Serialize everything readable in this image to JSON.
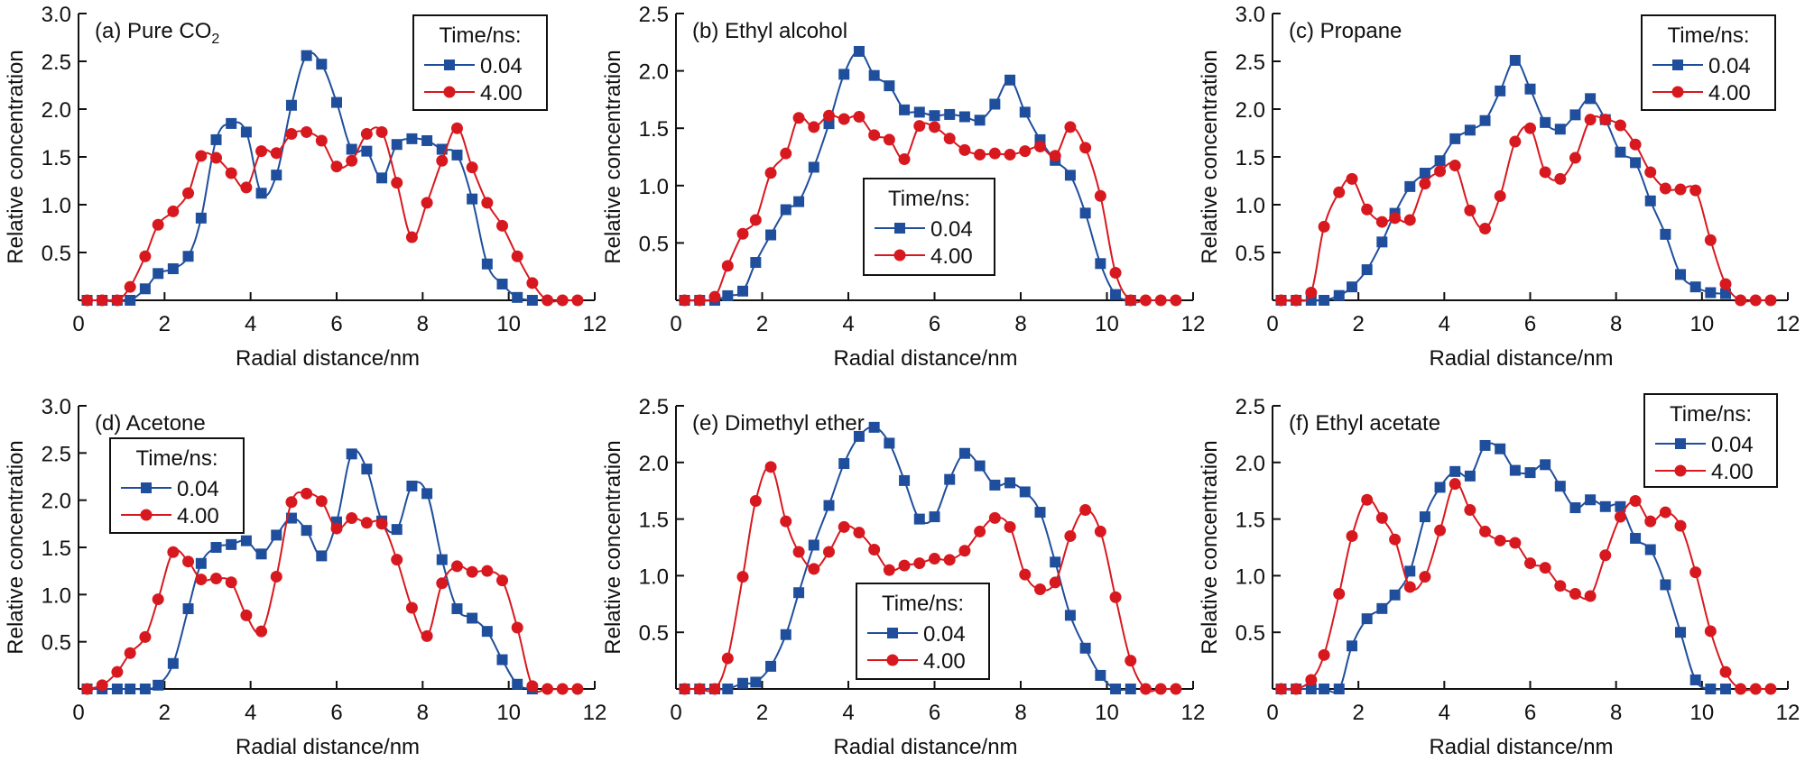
{
  "colors": {
    "series_a": "#1f4e9c",
    "series_b": "#d7191f",
    "axis": "#111111"
  },
  "chart_data": [
    {
      "type": "line",
      "panel": "a",
      "title": "(a) Pure CO",
      "title_subscript": "2",
      "xlabel": "Radial distance/nm",
      "ylabel": "Relative concentration",
      "xlim": [
        0,
        12
      ],
      "ylim": [
        0,
        3.0
      ],
      "xticks": [
        "0",
        "2",
        "4",
        "6",
        "8",
        "10",
        "12"
      ],
      "yticks": [
        "0.5",
        "1.0",
        "1.5",
        "2.0",
        "2.5",
        "3.0"
      ],
      "legend": {
        "title": "Time/ns:",
        "placement": "top-right"
      },
      "series": [
        {
          "name": "0.04",
          "marker": "square",
          "x": [
            0.2,
            0.55,
            0.9,
            1.2,
            1.55,
            1.85,
            2.2,
            2.55,
            2.85,
            3.2,
            3.55,
            3.9,
            4.25,
            4.6,
            4.95,
            5.3,
            5.65,
            6.0,
            6.35,
            6.7,
            7.05,
            7.4,
            7.75,
            8.1,
            8.45,
            8.8,
            9.15,
            9.5,
            9.85,
            10.2,
            10.55
          ],
          "y": [
            0,
            0,
            0,
            0,
            0.12,
            0.28,
            0.33,
            0.46,
            0.86,
            1.68,
            1.85,
            1.76,
            1.12,
            1.31,
            2.04,
            2.56,
            2.47,
            2.07,
            1.58,
            1.56,
            1.28,
            1.63,
            1.69,
            1.67,
            1.58,
            1.52,
            1.06,
            0.38,
            0.17,
            0.03,
            0
          ]
        },
        {
          "name": "4.00",
          "marker": "circle",
          "x": [
            0.2,
            0.55,
            0.9,
            1.2,
            1.55,
            1.85,
            2.2,
            2.55,
            2.85,
            3.2,
            3.55,
            3.9,
            4.25,
            4.6,
            4.95,
            5.3,
            5.65,
            6.0,
            6.35,
            6.7,
            7.05,
            7.4,
            7.75,
            8.1,
            8.45,
            8.8,
            9.15,
            9.5,
            9.85,
            10.2,
            10.55,
            10.9,
            11.25,
            11.6
          ],
          "y": [
            0,
            0,
            0,
            0.14,
            0.46,
            0.79,
            0.93,
            1.12,
            1.51,
            1.49,
            1.33,
            1.18,
            1.56,
            1.54,
            1.74,
            1.76,
            1.67,
            1.4,
            1.46,
            1.74,
            1.76,
            1.23,
            0.66,
            1.02,
            1.46,
            1.8,
            1.39,
            1.02,
            0.78,
            0.46,
            0.18,
            0,
            0,
            0
          ]
        }
      ]
    },
    {
      "type": "line",
      "panel": "b",
      "title": "(b) Ethyl alcohol",
      "xlabel": "Radial distance/nm",
      "ylabel": "Relative concentration",
      "xlim": [
        0,
        12
      ],
      "ylim": [
        0,
        2.5
      ],
      "xticks": [
        "0",
        "2",
        "4",
        "6",
        "8",
        "10",
        "12"
      ],
      "yticks": [
        "0.5",
        "1.0",
        "1.5",
        "2.0",
        "2.5"
      ],
      "legend": {
        "title": "Time/ns:",
        "placement": "center"
      },
      "series": [
        {
          "name": "0.04",
          "marker": "square",
          "x": [
            0.2,
            0.55,
            0.9,
            1.2,
            1.55,
            1.85,
            2.2,
            2.55,
            2.85,
            3.2,
            3.55,
            3.9,
            4.25,
            4.6,
            4.95,
            5.3,
            5.65,
            6.0,
            6.35,
            6.7,
            7.05,
            7.4,
            7.75,
            8.1,
            8.45,
            8.8,
            9.15,
            9.5,
            9.85,
            10.2,
            10.55
          ],
          "y": [
            0,
            0,
            0,
            0.04,
            0.08,
            0.33,
            0.57,
            0.79,
            0.86,
            1.16,
            1.54,
            1.97,
            2.17,
            1.96,
            1.87,
            1.66,
            1.64,
            1.61,
            1.62,
            1.6,
            1.57,
            1.71,
            1.92,
            1.64,
            1.4,
            1.22,
            1.09,
            0.76,
            0.32,
            0.05,
            0
          ]
        },
        {
          "name": "4.00",
          "marker": "circle",
          "x": [
            0.2,
            0.55,
            0.9,
            1.2,
            1.55,
            1.85,
            2.2,
            2.55,
            2.85,
            3.2,
            3.55,
            3.9,
            4.25,
            4.6,
            4.95,
            5.3,
            5.65,
            6.0,
            6.35,
            6.7,
            7.05,
            7.4,
            7.75,
            8.1,
            8.45,
            8.8,
            9.15,
            9.5,
            9.85,
            10.2,
            10.55,
            10.9,
            11.25,
            11.6
          ],
          "y": [
            0,
            0,
            0.03,
            0.3,
            0.58,
            0.7,
            1.11,
            1.28,
            1.59,
            1.51,
            1.61,
            1.58,
            1.6,
            1.44,
            1.4,
            1.23,
            1.52,
            1.51,
            1.41,
            1.31,
            1.27,
            1.28,
            1.27,
            1.3,
            1.34,
            1.26,
            1.51,
            1.33,
            0.91,
            0.24,
            0,
            0,
            0,
            0
          ]
        }
      ]
    },
    {
      "type": "line",
      "panel": "c",
      "title": "(c) Propane",
      "xlabel": "Radial distance/nm",
      "ylabel": "Relative concentration",
      "xlim": [
        0,
        12
      ],
      "ylim": [
        0,
        3.0
      ],
      "xticks": [
        "0",
        "2",
        "4",
        "6",
        "8",
        "10",
        "12"
      ],
      "yticks": [
        "0.5",
        "1.0",
        "1.5",
        "2.0",
        "2.5",
        "3.0"
      ],
      "legend": {
        "title": "Time/ns:",
        "placement": "top-right"
      },
      "series": [
        {
          "name": "0.04",
          "marker": "square",
          "x": [
            0.2,
            0.55,
            0.9,
            1.2,
            1.55,
            1.85,
            2.2,
            2.55,
            2.85,
            3.2,
            3.55,
            3.9,
            4.25,
            4.6,
            4.95,
            5.3,
            5.65,
            6.0,
            6.35,
            6.7,
            7.05,
            7.4,
            7.75,
            8.1,
            8.45,
            8.8,
            9.15,
            9.5,
            9.85,
            10.2,
            10.55
          ],
          "y": [
            0,
            0,
            0,
            0,
            0.05,
            0.14,
            0.32,
            0.61,
            0.91,
            1.19,
            1.33,
            1.46,
            1.69,
            1.78,
            1.88,
            2.19,
            2.51,
            2.21,
            1.86,
            1.79,
            1.94,
            2.11,
            1.89,
            1.55,
            1.44,
            1.04,
            0.69,
            0.27,
            0.14,
            0.08,
            0.07
          ]
        },
        {
          "name": "4.00",
          "marker": "circle",
          "x": [
            0.2,
            0.55,
            0.9,
            1.2,
            1.55,
            1.85,
            2.2,
            2.55,
            2.85,
            3.2,
            3.55,
            3.9,
            4.25,
            4.6,
            4.95,
            5.3,
            5.65,
            6.0,
            6.35,
            6.7,
            7.05,
            7.4,
            7.75,
            8.1,
            8.45,
            8.8,
            9.15,
            9.5,
            9.85,
            10.2,
            10.55,
            10.9,
            11.25,
            11.6
          ],
          "y": [
            0,
            0,
            0.08,
            0.77,
            1.13,
            1.27,
            0.95,
            0.82,
            0.86,
            0.84,
            1.22,
            1.35,
            1.41,
            0.94,
            0.75,
            1.09,
            1.66,
            1.8,
            1.34,
            1.27,
            1.49,
            1.89,
            1.89,
            1.83,
            1.63,
            1.34,
            1.17,
            1.16,
            1.15,
            0.63,
            0.17,
            0,
            0,
            0
          ]
        }
      ]
    },
    {
      "type": "line",
      "panel": "d",
      "title": "(d) Acetone",
      "xlabel": "Radial distance/nm",
      "ylabel": "Relative concentration",
      "xlim": [
        0,
        12
      ],
      "ylim": [
        0,
        3.0
      ],
      "xticks": [
        "0",
        "2",
        "4",
        "6",
        "8",
        "10",
        "12"
      ],
      "yticks": [
        "0.5",
        "1.0",
        "1.5",
        "2.0",
        "2.5",
        "3.0"
      ],
      "legend": {
        "title": "Time/ns:",
        "placement": "top-left"
      },
      "series": [
        {
          "name": "0.04",
          "marker": "square",
          "x": [
            0.2,
            0.55,
            0.9,
            1.2,
            1.55,
            1.85,
            2.2,
            2.55,
            2.85,
            3.2,
            3.55,
            3.9,
            4.25,
            4.6,
            4.95,
            5.3,
            5.65,
            6.0,
            6.35,
            6.7,
            7.05,
            7.4,
            7.75,
            8.1,
            8.45,
            8.8,
            9.15,
            9.5,
            9.85,
            10.2,
            10.55
          ],
          "y": [
            0,
            0,
            0,
            0,
            0,
            0.04,
            0.27,
            0.85,
            1.33,
            1.5,
            1.53,
            1.57,
            1.43,
            1.63,
            1.81,
            1.68,
            1.41,
            1.77,
            2.49,
            2.33,
            1.78,
            1.69,
            2.15,
            2.07,
            1.37,
            0.85,
            0.75,
            0.61,
            0.31,
            0.05,
            0
          ]
        },
        {
          "name": "4.00",
          "marker": "circle",
          "x": [
            0.2,
            0.55,
            0.9,
            1.2,
            1.55,
            1.85,
            2.2,
            2.55,
            2.85,
            3.2,
            3.55,
            3.9,
            4.25,
            4.6,
            4.95,
            5.3,
            5.65,
            6.0,
            6.35,
            6.7,
            7.05,
            7.4,
            7.75,
            8.1,
            8.45,
            8.8,
            9.15,
            9.5,
            9.85,
            10.2,
            10.55,
            10.9,
            11.25,
            11.6
          ],
          "y": [
            0,
            0.04,
            0.18,
            0.38,
            0.55,
            0.95,
            1.45,
            1.35,
            1.16,
            1.17,
            1.13,
            0.78,
            0.61,
            1.19,
            1.98,
            2.07,
            1.99,
            1.7,
            1.81,
            1.76,
            1.75,
            1.37,
            0.86,
            0.56,
            1.12,
            1.3,
            1.24,
            1.25,
            1.15,
            0.65,
            0.03,
            0,
            0,
            0
          ]
        }
      ]
    },
    {
      "type": "line",
      "panel": "e",
      "title": "(e) Dimethyl ether",
      "xlabel": "Radial distance/nm",
      "ylabel": "Relative concentration",
      "xlim": [
        0,
        12
      ],
      "ylim": [
        0,
        2.5
      ],
      "xticks": [
        "0",
        "2",
        "4",
        "6",
        "8",
        "10",
        "12"
      ],
      "yticks": [
        "0.5",
        "1.0",
        "1.5",
        "2.0",
        "2.5"
      ],
      "legend": {
        "title": "Time/ns:",
        "placement": "bottom-center"
      },
      "series": [
        {
          "name": "0.04",
          "marker": "square",
          "x": [
            0.2,
            0.55,
            0.9,
            1.2,
            1.55,
            1.85,
            2.2,
            2.55,
            2.85,
            3.2,
            3.55,
            3.9,
            4.25,
            4.6,
            4.95,
            5.3,
            5.65,
            6.0,
            6.35,
            6.7,
            7.05,
            7.4,
            7.75,
            8.1,
            8.45,
            8.8,
            9.15,
            9.5,
            9.85,
            10.2,
            10.55
          ],
          "y": [
            0,
            0,
            0,
            0,
            0.05,
            0.06,
            0.2,
            0.48,
            0.85,
            1.27,
            1.62,
            1.99,
            2.23,
            2.31,
            2.17,
            1.84,
            1.5,
            1.52,
            1.85,
            2.08,
            1.97,
            1.8,
            1.82,
            1.74,
            1.56,
            1.12,
            0.65,
            0.36,
            0.12,
            0,
            0
          ]
        },
        {
          "name": "4.00",
          "marker": "circle",
          "x": [
            0.2,
            0.55,
            0.9,
            1.2,
            1.55,
            1.85,
            2.2,
            2.55,
            2.85,
            3.2,
            3.55,
            3.9,
            4.25,
            4.6,
            4.95,
            5.3,
            5.65,
            6.0,
            6.35,
            6.7,
            7.05,
            7.4,
            7.75,
            8.1,
            8.45,
            8.8,
            9.15,
            9.5,
            9.85,
            10.2,
            10.55,
            10.9,
            11.25,
            11.6
          ],
          "y": [
            0,
            0,
            0,
            0.27,
            0.99,
            1.66,
            1.96,
            1.48,
            1.21,
            1.06,
            1.21,
            1.43,
            1.38,
            1.23,
            1.05,
            1.09,
            1.11,
            1.15,
            1.14,
            1.22,
            1.39,
            1.51,
            1.43,
            1.01,
            0.88,
            0.94,
            1.35,
            1.58,
            1.39,
            0.81,
            0.25,
            0,
            0,
            0
          ]
        }
      ]
    },
    {
      "type": "line",
      "panel": "f",
      "title": "(f) Ethyl acetate",
      "xlabel": "Radial distance/nm",
      "ylabel": "Relative concentration",
      "xlim": [
        0,
        12
      ],
      "ylim": [
        0,
        2.5
      ],
      "xticks": [
        "0",
        "2",
        "4",
        "6",
        "8",
        "10",
        "12"
      ],
      "yticks": [
        "0.5",
        "1.0",
        "1.5",
        "2.0",
        "2.5"
      ],
      "legend": {
        "title": "Time/ns:",
        "placement": "top-right"
      },
      "series": [
        {
          "name": "0.04",
          "marker": "square",
          "x": [
            0.2,
            0.55,
            0.9,
            1.2,
            1.55,
            1.85,
            2.2,
            2.55,
            2.85,
            3.2,
            3.55,
            3.9,
            4.25,
            4.6,
            4.95,
            5.3,
            5.65,
            6.0,
            6.35,
            6.7,
            7.05,
            7.4,
            7.75,
            8.1,
            8.45,
            8.8,
            9.15,
            9.5,
            9.85,
            10.2,
            10.55
          ],
          "y": [
            0,
            0,
            0,
            0,
            0,
            0.38,
            0.62,
            0.71,
            0.83,
            1.04,
            1.52,
            1.78,
            1.92,
            1.88,
            2.15,
            2.12,
            1.93,
            1.91,
            1.98,
            1.79,
            1.6,
            1.67,
            1.61,
            1.61,
            1.33,
            1.23,
            0.92,
            0.5,
            0.08,
            0,
            0
          ]
        },
        {
          "name": "4.00",
          "marker": "circle",
          "x": [
            0.2,
            0.55,
            0.9,
            1.2,
            1.55,
            1.85,
            2.2,
            2.55,
            2.85,
            3.2,
            3.55,
            3.9,
            4.25,
            4.6,
            4.95,
            5.3,
            5.65,
            6.0,
            6.35,
            6.7,
            7.05,
            7.4,
            7.75,
            8.1,
            8.45,
            8.8,
            9.15,
            9.5,
            9.85,
            10.2,
            10.55,
            10.9,
            11.25,
            11.6
          ],
          "y": [
            0,
            0,
            0.08,
            0.3,
            0.84,
            1.35,
            1.67,
            1.51,
            1.32,
            0.9,
            0.99,
            1.4,
            1.81,
            1.58,
            1.39,
            1.31,
            1.29,
            1.11,
            1.07,
            0.91,
            0.84,
            0.82,
            1.18,
            1.52,
            1.66,
            1.48,
            1.56,
            1.44,
            1.03,
            0.51,
            0.15,
            0,
            0,
            0
          ]
        }
      ]
    }
  ]
}
